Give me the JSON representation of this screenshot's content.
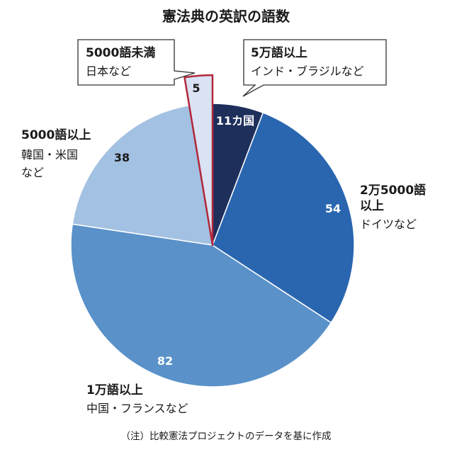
{
  "chart_data": {
    "type": "pie",
    "title": "憲法典の英訳の語数",
    "note": "（注）比較憲法プロジェクトのデータを基に作成",
    "slices": [
      {
        "category": "5万語以上",
        "examples": "インド・ブラジルなど",
        "value": 11,
        "value_label": "11カ国",
        "color": "#1f2f5c",
        "label_color": "#ffffff"
      },
      {
        "category_line1": "2万5000語",
        "category_line2": "以上",
        "examples": "ドイツなど",
        "value": 54,
        "value_label": "54",
        "color": "#2a66b0",
        "label_color": "#ffffff"
      },
      {
        "category": "1万語以上",
        "examples": "中国・フランスなど",
        "value": 82,
        "value_label": "82",
        "color": "#5a91c9",
        "label_color": "#ffffff"
      },
      {
        "category": "5000語以上",
        "examples_line1": "韓国・米国",
        "examples_line2": "など",
        "value": 38,
        "value_label": "38",
        "color": "#a3c1e2",
        "label_color": "#1a1a1a"
      },
      {
        "category": "5000語未満",
        "examples": "日本など",
        "value": 5,
        "value_label": "5",
        "color": "#d9e3f3",
        "label_color": "#1a1a1a",
        "highlight": true,
        "highlight_color": "#b3263a"
      }
    ]
  }
}
